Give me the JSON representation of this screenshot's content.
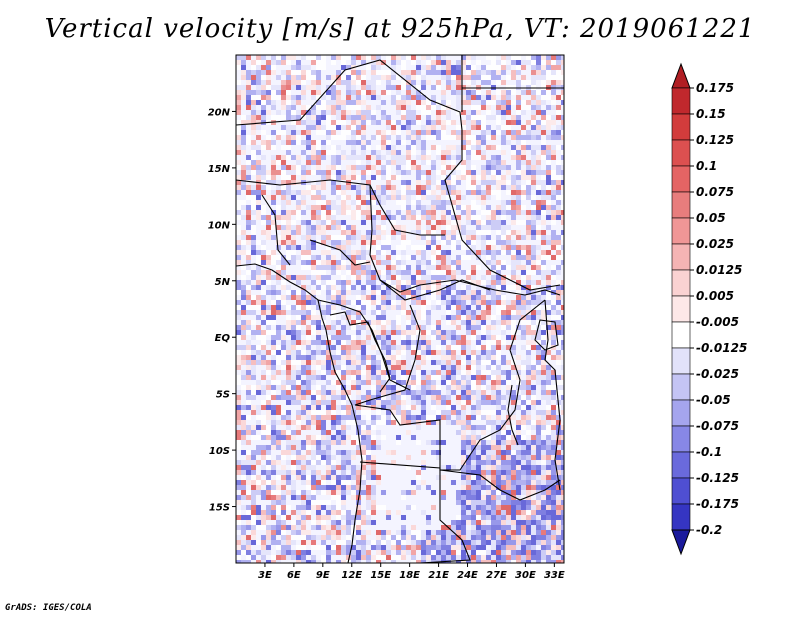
{
  "title": "Vertical velocity [m/s] at 925hPa, VT: 2019061221",
  "credit": "GrADS: IGES/COLA",
  "map": {
    "region": "Central Africa",
    "lon_range": [
      0,
      34
    ],
    "lat_range": [
      -20,
      25
    ],
    "lat_ticks": [
      {
        "value": 20,
        "label": "20N"
      },
      {
        "value": 15,
        "label": "15N"
      },
      {
        "value": 10,
        "label": "10N"
      },
      {
        "value": 5,
        "label": "5N"
      },
      {
        "value": 0,
        "label": "EQ"
      },
      {
        "value": -5,
        "label": "5S"
      },
      {
        "value": -10,
        "label": "10S"
      },
      {
        "value": -15,
        "label": "15S"
      }
    ],
    "lon_ticks": [
      {
        "value": 3,
        "label": "3E"
      },
      {
        "value": 6,
        "label": "6E"
      },
      {
        "value": 9,
        "label": "9E"
      },
      {
        "value": 12,
        "label": "12E"
      },
      {
        "value": 15,
        "label": "15E"
      },
      {
        "value": 18,
        "label": "18E"
      },
      {
        "value": 21,
        "label": "21E"
      },
      {
        "value": 24,
        "label": "24E"
      },
      {
        "value": 27,
        "label": "27E"
      },
      {
        "value": 30,
        "label": "30E"
      },
      {
        "value": 33,
        "label": "33E"
      }
    ]
  },
  "colorbar": {
    "units": "m/s",
    "levels": [
      {
        "label": "0.175",
        "color": "#c0282d"
      },
      {
        "label": "0.15",
        "color": "#d23c3c"
      },
      {
        "label": "0.125",
        "color": "#dc5050"
      },
      {
        "label": "0.1",
        "color": "#e46464"
      },
      {
        "label": "0.075",
        "color": "#e87d7d"
      },
      {
        "label": "0.05",
        "color": "#f09696"
      },
      {
        "label": "0.025",
        "color": "#f5b4b4"
      },
      {
        "label": "0.0125",
        "color": "#fad2d2"
      },
      {
        "label": "0.005",
        "color": "#fde8e8"
      },
      {
        "label": "-0.005",
        "color": "#ffffff"
      },
      {
        "label": "-0.0125",
        "color": "#e2e2fa"
      },
      {
        "label": "-0.025",
        "color": "#c4c4f4"
      },
      {
        "label": "-0.05",
        "color": "#a5a5ee"
      },
      {
        "label": "-0.075",
        "color": "#8787e6"
      },
      {
        "label": "-0.1",
        "color": "#6a6adc"
      },
      {
        "label": "-0.125",
        "color": "#4f4fd2"
      },
      {
        "label": "-0.175",
        "color": "#3535c2"
      },
      {
        "label": "-0.2",
        "color": "#2020b0"
      }
    ],
    "top_cap_color": "#b01e23",
    "bottom_cap_color": "#1a1a9c"
  }
}
